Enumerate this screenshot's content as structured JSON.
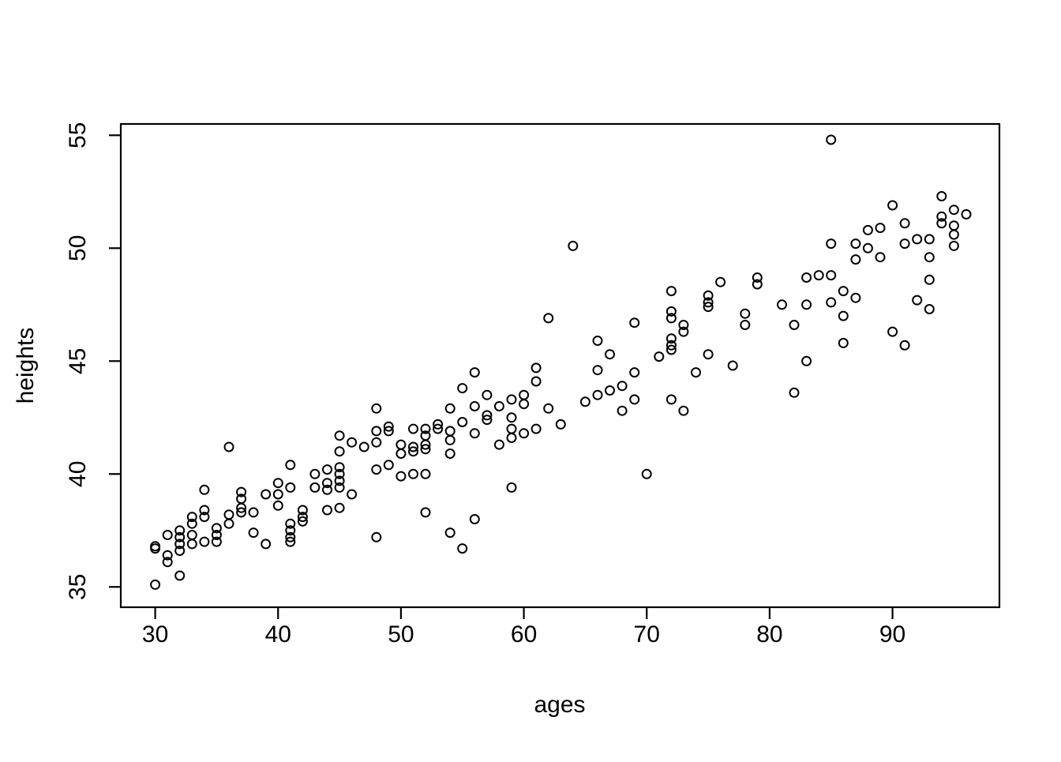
{
  "figure": {
    "background_color": "#ffffff",
    "foreground_color": "#000000"
  },
  "chart_data": {
    "type": "scatter",
    "xlabel": "ages",
    "ylabel": "heights",
    "marker": "open-circle",
    "grid": false,
    "legend": "none",
    "x_ticks": [
      30,
      40,
      50,
      60,
      70,
      80,
      90
    ],
    "y_ticks": [
      35,
      40,
      45,
      50,
      55
    ],
    "xlim": [
      27.2,
      98.7
    ],
    "ylim": [
      34.1,
      55.5
    ],
    "points": [
      [
        30,
        36.8
      ],
      [
        30,
        36.7
      ],
      [
        30,
        35.1
      ],
      [
        31,
        37.3
      ],
      [
        31,
        36.4
      ],
      [
        31,
        36.1
      ],
      [
        32,
        37.5
      ],
      [
        32,
        37.2
      ],
      [
        32,
        36.9
      ],
      [
        32,
        36.6
      ],
      [
        32,
        35.5
      ],
      [
        33,
        38.1
      ],
      [
        33,
        37.8
      ],
      [
        33,
        37.3
      ],
      [
        33,
        36.9
      ],
      [
        34,
        39.3
      ],
      [
        34,
        38.4
      ],
      [
        34,
        38.1
      ],
      [
        34,
        37.0
      ],
      [
        35,
        37.6
      ],
      [
        35,
        37.3
      ],
      [
        35,
        37.0
      ],
      [
        36,
        41.2
      ],
      [
        36,
        38.2
      ],
      [
        36,
        37.8
      ],
      [
        37,
        39.2
      ],
      [
        37,
        38.9
      ],
      [
        37,
        38.5
      ],
      [
        37,
        38.3
      ],
      [
        38,
        38.3
      ],
      [
        38,
        37.4
      ],
      [
        39,
        39.1
      ],
      [
        39,
        36.9
      ],
      [
        40,
        39.6
      ],
      [
        40,
        39.1
      ],
      [
        40,
        38.6
      ],
      [
        41,
        40.4
      ],
      [
        41,
        39.4
      ],
      [
        41,
        37.8
      ],
      [
        41,
        37.5
      ],
      [
        41,
        37.2
      ],
      [
        41,
        37.0
      ],
      [
        42,
        38.4
      ],
      [
        42,
        38.1
      ],
      [
        42,
        37.9
      ],
      [
        43,
        40.0
      ],
      [
        43,
        39.4
      ],
      [
        44,
        40.2
      ],
      [
        44,
        39.6
      ],
      [
        44,
        39.3
      ],
      [
        44,
        38.4
      ],
      [
        45,
        41.7
      ],
      [
        45,
        41.0
      ],
      [
        45,
        40.3
      ],
      [
        45,
        40.0
      ],
      [
        45,
        39.7
      ],
      [
        45,
        39.4
      ],
      [
        45,
        38.5
      ],
      [
        46,
        41.4
      ],
      [
        46,
        39.1
      ],
      [
        47,
        41.2
      ],
      [
        48,
        42.9
      ],
      [
        48,
        41.9
      ],
      [
        48,
        41.4
      ],
      [
        48,
        40.2
      ],
      [
        48,
        37.2
      ],
      [
        49,
        42.1
      ],
      [
        49,
        41.9
      ],
      [
        49,
        40.4
      ],
      [
        50,
        41.3
      ],
      [
        50,
        40.9
      ],
      [
        50,
        39.9
      ],
      [
        51,
        42.0
      ],
      [
        51,
        41.2
      ],
      [
        51,
        41.0
      ],
      [
        51,
        40.0
      ],
      [
        52,
        42.0
      ],
      [
        52,
        41.7
      ],
      [
        52,
        41.3
      ],
      [
        52,
        41.1
      ],
      [
        52,
        40.0
      ],
      [
        52,
        38.3
      ],
      [
        53,
        42.2
      ],
      [
        53,
        42.0
      ],
      [
        54,
        42.9
      ],
      [
        54,
        41.9
      ],
      [
        54,
        41.5
      ],
      [
        54,
        40.9
      ],
      [
        54,
        37.4
      ],
      [
        55,
        43.8
      ],
      [
        55,
        42.3
      ],
      [
        55,
        36.7
      ],
      [
        56,
        44.5
      ],
      [
        56,
        43.0
      ],
      [
        56,
        41.8
      ],
      [
        56,
        38.0
      ],
      [
        57,
        43.5
      ],
      [
        57,
        42.6
      ],
      [
        57,
        42.4
      ],
      [
        58,
        43.0
      ],
      [
        58,
        41.3
      ],
      [
        59,
        43.3
      ],
      [
        59,
        42.5
      ],
      [
        59,
        42.0
      ],
      [
        59,
        41.6
      ],
      [
        59,
        39.4
      ],
      [
        60,
        43.5
      ],
      [
        60,
        43.1
      ],
      [
        60,
        41.8
      ],
      [
        61,
        44.7
      ],
      [
        61,
        44.1
      ],
      [
        61,
        42.0
      ],
      [
        62,
        46.9
      ],
      [
        62,
        42.9
      ],
      [
        63,
        42.2
      ],
      [
        64,
        50.1
      ],
      [
        65,
        43.2
      ],
      [
        66,
        45.9
      ],
      [
        66,
        44.6
      ],
      [
        66,
        43.5
      ],
      [
        67,
        45.3
      ],
      [
        67,
        43.7
      ],
      [
        68,
        43.9
      ],
      [
        68,
        42.8
      ],
      [
        69,
        46.7
      ],
      [
        69,
        44.5
      ],
      [
        69,
        43.3
      ],
      [
        70,
        40.0
      ],
      [
        71,
        45.2
      ],
      [
        72,
        48.1
      ],
      [
        72,
        47.2
      ],
      [
        72,
        46.9
      ],
      [
        72,
        46.0
      ],
      [
        72,
        45.7
      ],
      [
        72,
        45.5
      ],
      [
        72,
        43.3
      ],
      [
        73,
        46.6
      ],
      [
        73,
        46.3
      ],
      [
        73,
        42.8
      ],
      [
        74,
        44.5
      ],
      [
        75,
        47.9
      ],
      [
        75,
        47.6
      ],
      [
        75,
        47.4
      ],
      [
        75,
        45.3
      ],
      [
        76,
        48.5
      ],
      [
        77,
        44.8
      ],
      [
        78,
        47.1
      ],
      [
        78,
        46.6
      ],
      [
        79,
        48.7
      ],
      [
        79,
        48.4
      ],
      [
        81,
        47.5
      ],
      [
        82,
        46.6
      ],
      [
        82,
        43.6
      ],
      [
        83,
        48.7
      ],
      [
        83,
        47.5
      ],
      [
        83,
        45.0
      ],
      [
        84,
        48.8
      ],
      [
        85,
        54.8
      ],
      [
        85,
        50.2
      ],
      [
        85,
        48.8
      ],
      [
        85,
        47.6
      ],
      [
        86,
        48.1
      ],
      [
        86,
        47.0
      ],
      [
        86,
        45.8
      ],
      [
        87,
        50.2
      ],
      [
        87,
        49.5
      ],
      [
        87,
        47.8
      ],
      [
        88,
        50.8
      ],
      [
        88,
        50.0
      ],
      [
        89,
        50.9
      ],
      [
        89,
        49.6
      ],
      [
        90,
        51.9
      ],
      [
        90,
        46.3
      ],
      [
        91,
        51.1
      ],
      [
        91,
        50.2
      ],
      [
        91,
        45.7
      ],
      [
        92,
        50.4
      ],
      [
        92,
        47.7
      ],
      [
        93,
        50.4
      ],
      [
        93,
        49.6
      ],
      [
        93,
        48.6
      ],
      [
        93,
        47.3
      ],
      [
        94,
        52.3
      ],
      [
        94,
        51.4
      ],
      [
        94,
        51.1
      ],
      [
        95,
        51.7
      ],
      [
        95,
        51.0
      ],
      [
        95,
        50.6
      ],
      [
        95,
        50.1
      ],
      [
        96,
        51.5
      ]
    ]
  }
}
